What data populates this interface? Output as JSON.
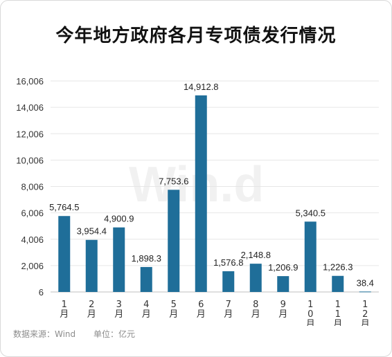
{
  "title": "今年地方政府各月专项债发行情况",
  "watermark": "Win.d",
  "source": {
    "data_source": "数据来源：Wind",
    "unit": "单位：亿元"
  },
  "colors": {
    "bar": "#1f6e99",
    "grid": "#e6e6e6",
    "axis": "#333333",
    "label": "#222222"
  },
  "chart_data": {
    "type": "bar",
    "title": "今年地方政府各月专项债发行情况",
    "categories": [
      "1月",
      "2月",
      "3月",
      "4月",
      "5月",
      "6月",
      "7月",
      "8月",
      "9月",
      "10月",
      "11月",
      "12月"
    ],
    "values": [
      5764.5,
      3954.4,
      4900.9,
      1898.3,
      7753.6,
      14912.8,
      1576.8,
      2148.8,
      1206.9,
      5340.5,
      1226.3,
      38.4
    ],
    "value_labels": [
      "5,764.5",
      "3,954.4",
      "4,900.9",
      "1,898.3",
      "7,753.6",
      "14,912.8",
      "1,576.8",
      "2,148.8",
      "1,206.9",
      "5,340.5",
      "1,226.3",
      "38.4"
    ],
    "yticks": [
      6,
      2006,
      4006,
      6006,
      8006,
      10006,
      12006,
      14006,
      16006
    ],
    "ytick_labels": [
      "6",
      "2,006",
      "4,006",
      "6,006",
      "8,006",
      "10,006",
      "12,006",
      "14,006",
      "16,006"
    ],
    "ylim": [
      6,
      16006
    ],
    "xlabel": "",
    "ylabel": "",
    "grid": true,
    "legend": "none"
  }
}
